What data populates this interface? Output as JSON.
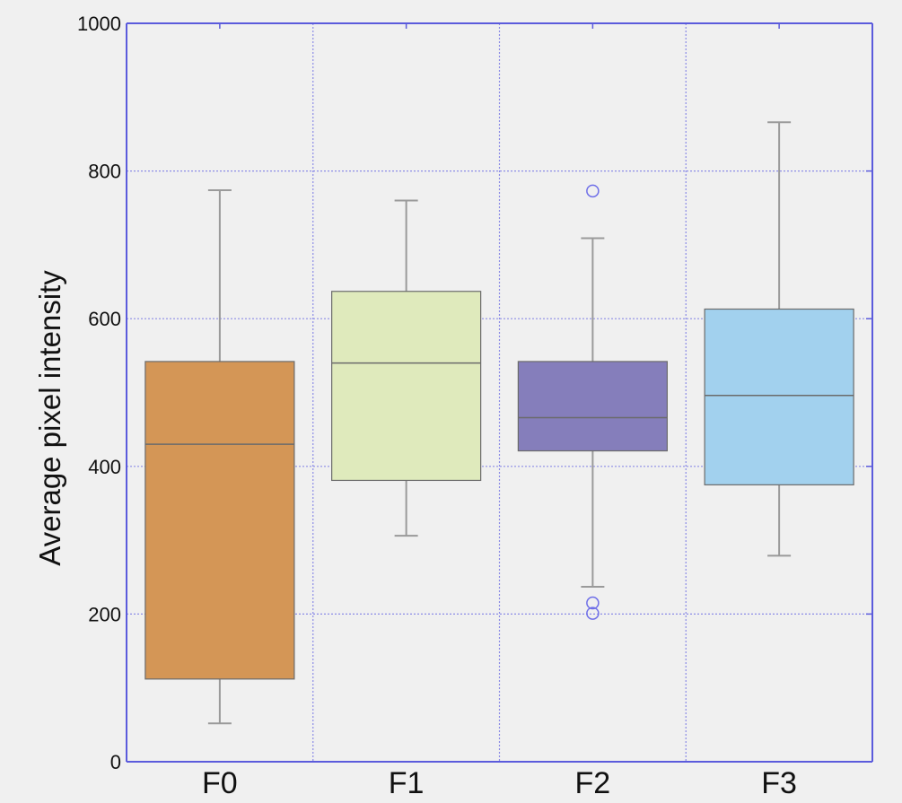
{
  "chart_data": {
    "type": "box",
    "ylabel": "Average pixel intensity",
    "xlabel": "",
    "ylim": [
      0,
      1000
    ],
    "yticks": [
      0,
      200,
      400,
      600,
      800,
      1000
    ],
    "grid": true,
    "categories": [
      "F0",
      "F1",
      "F2",
      "F3"
    ],
    "boxes": [
      {
        "category": "F0",
        "whisker_low": 52,
        "q1": 112,
        "median": 430,
        "q3": 542,
        "whisker_high": 774,
        "outliers": [],
        "color": "#d49656"
      },
      {
        "category": "F1",
        "whisker_low": 306,
        "q1": 381,
        "median": 540,
        "q3": 637,
        "whisker_high": 760,
        "outliers": [],
        "color": "#dfeabc"
      },
      {
        "category": "F2",
        "whisker_low": 237,
        "q1": 421,
        "median": 466,
        "q3": 542,
        "whisker_high": 709,
        "outliers": [
          773,
          215,
          201
        ],
        "color": "#857ebb"
      },
      {
        "category": "F3",
        "whisker_low": 279,
        "q1": 375,
        "median": 496,
        "q3": 613,
        "whisker_high": 866,
        "outliers": [],
        "color": "#a2d1ee"
      }
    ]
  },
  "colors": {
    "background": "#f0f0f0",
    "axis": "#5b5bdc",
    "grid": "#8c8ce6",
    "whisker": "#9a9a9a",
    "box_edge": "#6b6b6b",
    "outlier": "#6f6fe8"
  }
}
